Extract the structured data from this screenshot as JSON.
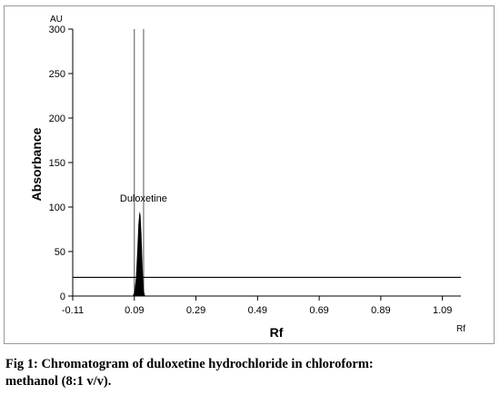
{
  "chart_data": {
    "type": "line",
    "title": "",
    "xlabel": "Rf",
    "ylabel": "Absorbance",
    "x_unit": "Rf",
    "y_unit": "AU",
    "xlim": [
      -0.11,
      1.15
    ],
    "ylim": [
      0,
      300
    ],
    "x_ticks": [
      -0.11,
      0.09,
      0.29,
      0.49,
      0.69,
      0.89,
      1.09
    ],
    "y_ticks": [
      0,
      50,
      100,
      150,
      200,
      250,
      300
    ],
    "baseline": 21,
    "integration_bounds": [
      0.09,
      0.12
    ],
    "peak": {
      "label": "Duloxetine",
      "x": [
        0.085,
        0.09,
        0.095,
        0.1,
        0.103,
        0.106,
        0.108,
        0.11,
        0.113,
        0.116,
        0.119,
        0.122,
        0.125
      ],
      "y": [
        0,
        5,
        20,
        55,
        80,
        92,
        95,
        90,
        70,
        40,
        15,
        4,
        0
      ]
    },
    "grid": false,
    "legend": "none"
  },
  "caption": {
    "line1": "Fig 1: Chromatogram of duloxetine hydrochloride in chloroform:",
    "line2": "methanol (8:1 v/v)."
  }
}
